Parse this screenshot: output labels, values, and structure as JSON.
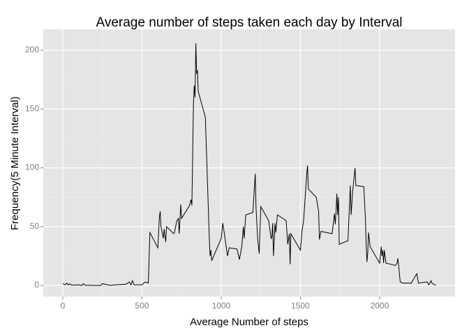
{
  "chart_data": {
    "type": "line",
    "title": "Average number of steps taken each day by Interval",
    "x_label": "Average Number of steps",
    "y_label": "Frequency(5 Minute Interval)",
    "color": "#000000",
    "panel_color": "#e5e5e5",
    "grid": true,
    "xlim": [
      -123,
      2476
    ],
    "ylim": [
      -9.5,
      217.8
    ],
    "xticks": [
      0,
      500,
      1000,
      1500,
      2000
    ],
    "yticks": [
      0,
      50,
      100,
      150,
      200
    ],
    "x": [
      0,
      15,
      25,
      35,
      45,
      55,
      100,
      120,
      130,
      140,
      200,
      240,
      250,
      300,
      330,
      400,
      420,
      430,
      440,
      450,
      500,
      520,
      540,
      550,
      600,
      610,
      615,
      620,
      635,
      640,
      650,
      655,
      700,
      705,
      720,
      730,
      735,
      745,
      750,
      800,
      810,
      815,
      825,
      830,
      835,
      840,
      845,
      850,
      855,
      900,
      925,
      930,
      935,
      940,
      1000,
      1010,
      1020,
      1040,
      1050,
      1100,
      1115,
      1130,
      1140,
      1145,
      1155,
      1200,
      1215,
      1220,
      1230,
      1240,
      1250,
      1300,
      1315,
      1320,
      1325,
      1330,
      1340,
      1345,
      1355,
      1400,
      1410,
      1420,
      1430,
      1435,
      1440,
      1500,
      1510,
      1520,
      1540,
      1545,
      1550,
      1600,
      1615,
      1620,
      1630,
      1700,
      1715,
      1720,
      1725,
      1730,
      1735,
      1740,
      1745,
      1800,
      1815,
      1820,
      1830,
      1845,
      1850,
      1900,
      1910,
      1915,
      1920,
      1925,
      1930,
      1940,
      2000,
      2010,
      2015,
      2020,
      2025,
      2030,
      2040,
      2100,
      2110,
      2115,
      2120,
      2130,
      2145,
      2200,
      2230,
      2235,
      2245,
      2300,
      2310,
      2325,
      2330,
      2355
    ],
    "values": [
      1.7,
      0.5,
      2,
      0.5,
      1.5,
      0.3,
      0.5,
      0,
      1.5,
      0.2,
      0,
      0,
      1.5,
      0,
      0.5,
      1,
      3,
      0.5,
      4,
      0.5,
      0.5,
      3,
      2,
      45,
      32,
      58,
      63,
      50,
      40,
      48,
      37,
      50,
      44,
      45,
      55,
      57,
      44,
      69,
      57,
      68,
      73,
      68,
      155,
      170,
      160,
      206,
      180,
      183,
      165,
      143,
      40,
      25,
      30,
      21,
      40,
      53,
      44,
      25,
      32,
      31,
      22,
      33,
      50,
      40,
      60,
      62,
      95,
      66,
      40,
      27,
      67,
      55,
      40,
      41,
      53,
      25,
      53,
      45,
      60,
      56,
      55,
      35,
      44,
      18,
      44,
      30,
      46,
      55,
      95,
      102,
      82,
      75,
      63,
      39,
      46,
      44,
      61,
      52,
      63,
      78,
      60,
      75,
      35,
      38,
      85,
      60,
      80,
      100,
      85,
      84,
      58,
      35,
      20,
      28,
      45,
      33,
      19,
      33,
      25,
      30,
      19,
      30,
      19,
      17,
      19,
      23,
      17,
      3,
      2,
      2,
      9,
      10,
      2,
      3,
      0.5,
      4,
      2,
      0
    ]
  }
}
